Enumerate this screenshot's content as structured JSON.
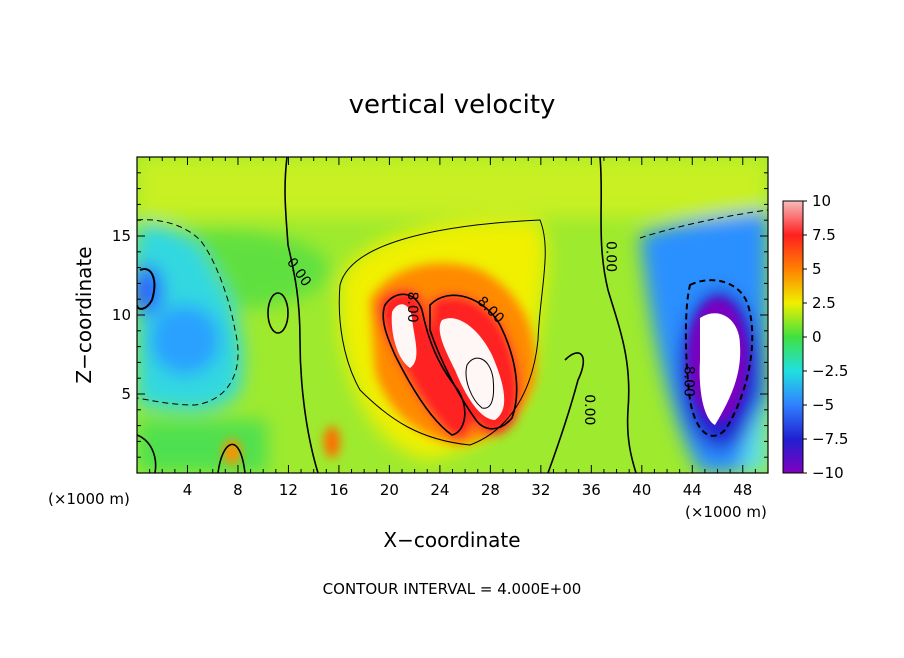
{
  "chart_data": {
    "type": "heatmap",
    "title": "vertical velocity",
    "xlabel": "X−coordinate",
    "ylabel": "Z−coordinate",
    "x_units_left": "(×1000 m)",
    "x_units_right": "(×1000 m)",
    "footer": "CONTOUR INTERVAL = 4.000E+00",
    "xlim": [
      0,
      50
    ],
    "ylim": [
      0,
      20
    ],
    "x_ticks": [
      4,
      8,
      12,
      16,
      20,
      24,
      28,
      32,
      36,
      40,
      44,
      48
    ],
    "x_tick_labels": [
      "4",
      "8",
      "12",
      "16",
      "20",
      "24",
      "28",
      "32",
      "36",
      "40",
      "44",
      "48"
    ],
    "y_ticks": [
      5,
      10,
      15
    ],
    "y_tick_labels": [
      "5",
      "10",
      "15"
    ],
    "colorbar": {
      "range": [
        -10,
        10
      ],
      "ticks": [
        10,
        7.5,
        5,
        2.5,
        0,
        -2.5,
        -5,
        -7.5,
        -10
      ],
      "tick_labels": [
        "10",
        "7.5",
        "5",
        "2.5",
        "0",
        "−2.5",
        "−5",
        "−7.5",
        "−10"
      ],
      "colors": [
        "#f7bcbc",
        "#ff2020",
        "#ff8000",
        "#f0f000",
        "#40e040",
        "#20e0e0",
        "#3080ff",
        "#2020d0",
        "#8000c0"
      ]
    },
    "contour_labels": [
      {
        "text": "0.00",
        "x": 12.8,
        "z": 12.7,
        "angle": 55
      },
      {
        "text": "8.00",
        "x": 21.8,
        "z": 10.5,
        "angle": 90
      },
      {
        "text": "8.00",
        "x": 28.0,
        "z": 10.3,
        "angle": 45
      },
      {
        "text": "0.00",
        "x": 37.5,
        "z": 13.7,
        "angle": 90
      },
      {
        "text": "0.00",
        "x": 35.8,
        "z": 4.0,
        "angle": 90
      },
      {
        "text": "8.00",
        "x": 43.7,
        "z": 5.8,
        "angle": 90
      }
    ],
    "field_features": [
      {
        "kind": "updraft_core",
        "x": 21.8,
        "z": 9.5,
        "peak": 10
      },
      {
        "kind": "updraft_core",
        "x": 26.5,
        "z": 7.2,
        "peak": 10
      },
      {
        "kind": "downdraft_core",
        "x": 45.3,
        "z": 7.5,
        "peak": -10
      },
      {
        "kind": "downdraft",
        "x": 5.0,
        "z": 8.5,
        "peak": -5.5
      }
    ]
  }
}
